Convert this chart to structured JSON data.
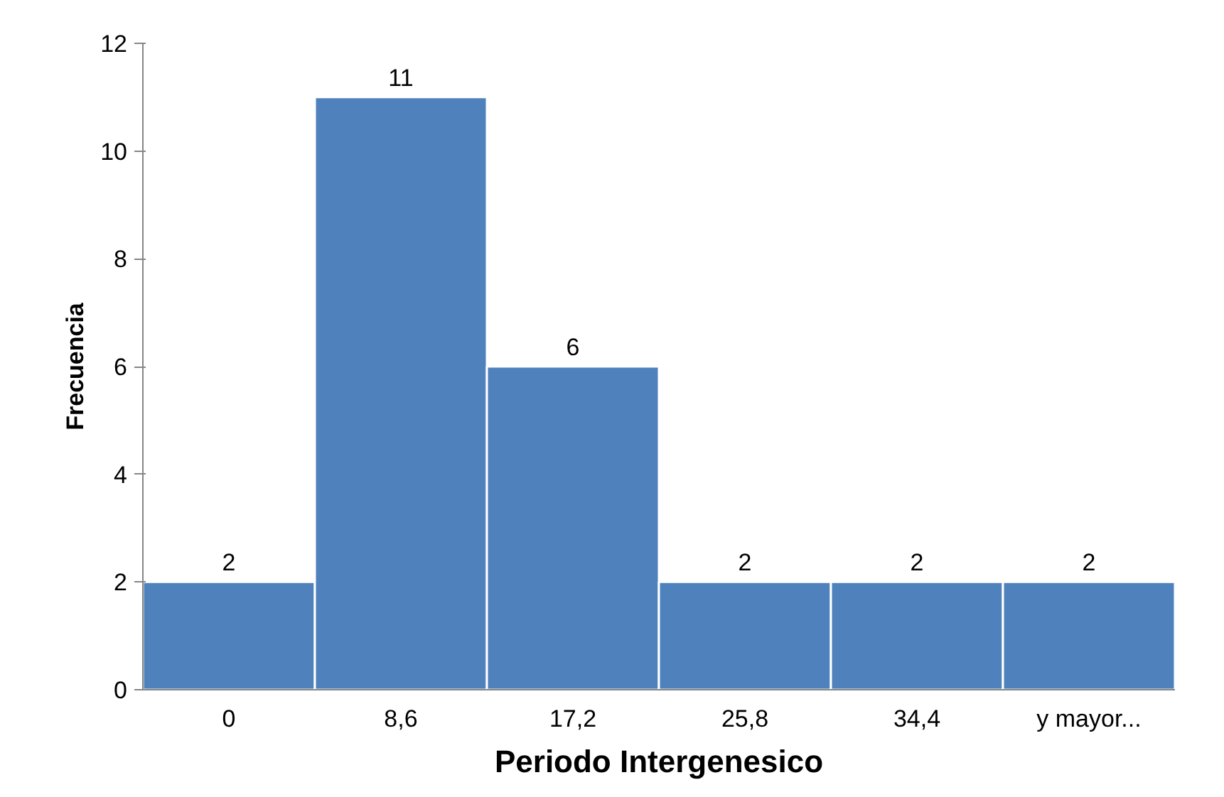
{
  "chart_data": {
    "type": "bar",
    "xlabel": "Periodo Intergenesico",
    "ylabel": "Frecuencia",
    "categories": [
      "0",
      "8,6",
      "17,2",
      "25,8",
      "34,4",
      "y mayor..."
    ],
    "values": [
      2,
      11,
      6,
      2,
      2,
      2
    ],
    "color": "#4f81bd",
    "ylim": [
      0,
      12
    ],
    "yticks": [
      0,
      2,
      4,
      6,
      8,
      10,
      12
    ],
    "grid": false,
    "data_labels": true
  }
}
